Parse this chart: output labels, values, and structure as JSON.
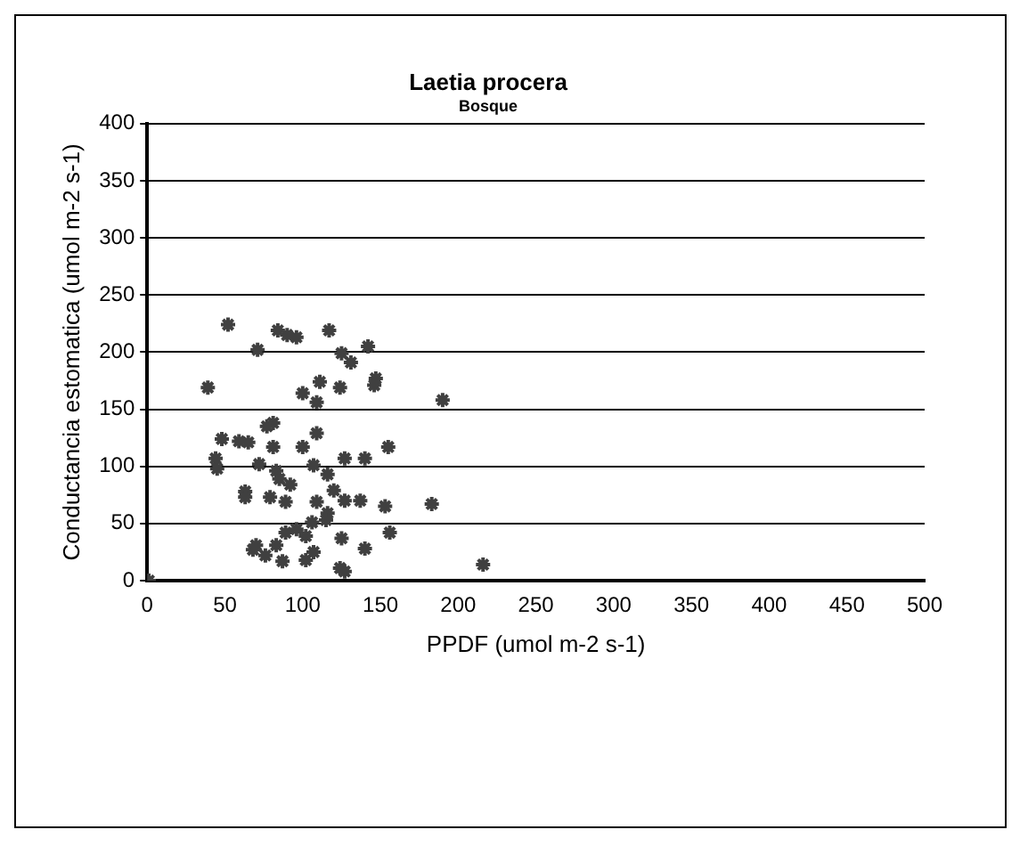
{
  "chart_data": {
    "type": "scatter",
    "title": "Laetia procera",
    "subtitle": "Bosque",
    "xlabel": "PPDF (umol m-2 s-1)",
    "ylabel": "Conductancia estomatica (umol m-2 s-1)",
    "x": [
      52,
      84,
      90,
      96,
      117,
      71,
      125,
      131,
      142,
      147,
      146,
      39,
      111,
      124,
      100,
      109,
      190,
      81,
      77,
      109,
      48,
      59,
      65,
      81,
      100,
      155,
      44,
      45,
      72,
      83,
      85,
      107,
      116,
      127,
      140,
      63,
      79,
      89,
      109,
      120,
      127,
      137,
      153,
      183,
      116,
      106,
      68,
      76,
      83,
      89,
      96,
      102,
      87,
      102,
      107,
      125,
      124,
      127,
      140,
      156,
      216,
      1,
      70,
      115,
      92,
      63
    ],
    "values": [
      224,
      219,
      215,
      213,
      219,
      202,
      199,
      191,
      205,
      177,
      171,
      169,
      174,
      169,
      164,
      156,
      158,
      138,
      135,
      129,
      124,
      122,
      121,
      117,
      117,
      117,
      107,
      98,
      102,
      96,
      89,
      101,
      93,
      107,
      107,
      78,
      73,
      69,
      69,
      79,
      70,
      70,
      65,
      67,
      59,
      51,
      27,
      22,
      31,
      42,
      45,
      39,
      17,
      18,
      25,
      37,
      11,
      8,
      28,
      42,
      14,
      0,
      31,
      53,
      84,
      73
    ],
    "color": "#404040",
    "marker": "cross",
    "xlim": [
      0,
      500
    ],
    "xticks": [
      0,
      50,
      100,
      150,
      200,
      250,
      300,
      350,
      400,
      450,
      500
    ],
    "ylim": [
      0,
      400
    ],
    "yticks": [
      0,
      50,
      100,
      150,
      200,
      250,
      300,
      350,
      400
    ],
    "grid": "y",
    "legend": false
  }
}
